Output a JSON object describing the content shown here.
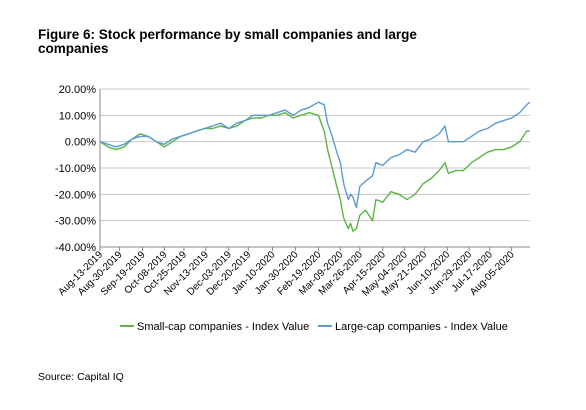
{
  "figure": {
    "title": "Figure 6: Stock performance by small companies and large companies",
    "source": "Source: Capital IQ"
  },
  "chart_data": {
    "type": "line",
    "title": "Figure 6: Stock performance by small companies and large companies",
    "xlabel": "",
    "ylabel": "",
    "ylim": [
      -40,
      20
    ],
    "yticks": [
      "20.00%",
      "10.00%",
      "0.00%",
      "-10.00%",
      "-20.00%",
      "-30.00%",
      "-40.00%"
    ],
    "ytick_values": [
      20,
      10,
      0,
      -10,
      -20,
      -30,
      -40
    ],
    "xlim": [
      "2019-08-13",
      "2020-08-21"
    ],
    "xticks": [
      "Aug-13-2019",
      "Aug-30-2019",
      "Sep-19-2019",
      "Oct-08-2019",
      "Oct-25-2019",
      "Nov-13-2019",
      "Dec-03-2019",
      "Dec-20-2019",
      "Jan-10-2020",
      "Jan-30-2020",
      "Feb-19-2020",
      "Mar-09-2020",
      "Mar-26-2020",
      "Apr-15-2020",
      "May-04-2020",
      "May-21-2020",
      "Jun-10-2020",
      "Jun-29-2020",
      "Jul-17-2020",
      "Aug-05-2020"
    ],
    "xtick_dates": [
      "2019-08-13",
      "2019-08-30",
      "2019-09-19",
      "2019-10-08",
      "2019-10-25",
      "2019-11-13",
      "2019-12-03",
      "2019-12-20",
      "2020-01-10",
      "2020-01-30",
      "2020-02-19",
      "2020-03-09",
      "2020-03-26",
      "2020-04-15",
      "2020-05-04",
      "2020-05-21",
      "2020-06-10",
      "2020-06-29",
      "2020-07-17",
      "2020-08-05"
    ],
    "grid": "horizontal",
    "legend_position": "bottom",
    "x": [
      "2019-08-13",
      "2019-08-20",
      "2019-08-27",
      "2019-09-03",
      "2019-09-10",
      "2019-09-17",
      "2019-09-24",
      "2019-10-01",
      "2019-10-08",
      "2019-10-15",
      "2019-10-22",
      "2019-10-29",
      "2019-11-05",
      "2019-11-12",
      "2019-11-19",
      "2019-11-26",
      "2019-12-03",
      "2019-12-10",
      "2019-12-17",
      "2019-12-24",
      "2019-12-31",
      "2020-01-07",
      "2020-01-14",
      "2020-01-21",
      "2020-01-28",
      "2020-02-04",
      "2020-02-11",
      "2020-02-19",
      "2020-02-24",
      "2020-02-27",
      "2020-03-02",
      "2020-03-06",
      "2020-03-09",
      "2020-03-12",
      "2020-03-16",
      "2020-03-18",
      "2020-03-20",
      "2020-03-23",
      "2020-03-26",
      "2020-03-31",
      "2020-04-06",
      "2020-04-09",
      "2020-04-15",
      "2020-04-22",
      "2020-04-29",
      "2020-05-06",
      "2020-05-13",
      "2020-05-20",
      "2020-05-27",
      "2020-06-03",
      "2020-06-08",
      "2020-06-11",
      "2020-06-17",
      "2020-06-24",
      "2020-07-01",
      "2020-07-08",
      "2020-07-15",
      "2020-07-22",
      "2020-07-29",
      "2020-08-05",
      "2020-08-12",
      "2020-08-18",
      "2020-08-21"
    ],
    "series": [
      {
        "name": "Small-cap companies - Index Value",
        "color": "#5cb443",
        "values": [
          0,
          -2,
          -3,
          -2,
          1,
          3,
          2,
          0,
          -2,
          0,
          2,
          3,
          4,
          5,
          5,
          6,
          5,
          6,
          8,
          9,
          9,
          10,
          10,
          11,
          9,
          10,
          11,
          10,
          4,
          -3,
          -10,
          -17,
          -22,
          -29,
          -33,
          -31,
          -34,
          -33,
          -28,
          -26,
          -30,
          -22,
          -23,
          -19,
          -20,
          -22,
          -20,
          -16,
          -14,
          -11,
          -8,
          -12,
          -11,
          -11,
          -8,
          -6,
          -4,
          -3,
          -3,
          -2,
          0,
          4,
          4
        ]
      },
      {
        "name": "Large-cap companies - Index Value",
        "color": "#5b9bd5",
        "values": [
          0,
          -1,
          -2,
          -1,
          1,
          2,
          2,
          0,
          -1,
          1,
          2,
          3,
          4,
          5,
          6,
          7,
          5,
          7,
          8,
          10,
          10,
          10,
          11,
          12,
          10,
          12,
          13,
          15,
          14,
          7,
          2,
          -4,
          -8,
          -16,
          -22,
          -20,
          -21,
          -25,
          -17,
          -15,
          -13,
          -8,
          -9,
          -6,
          -5,
          -3,
          -4,
          0,
          1,
          3,
          6,
          0,
          0,
          0,
          2,
          4,
          5,
          7,
          8,
          9,
          11,
          14,
          15
        ]
      }
    ]
  }
}
